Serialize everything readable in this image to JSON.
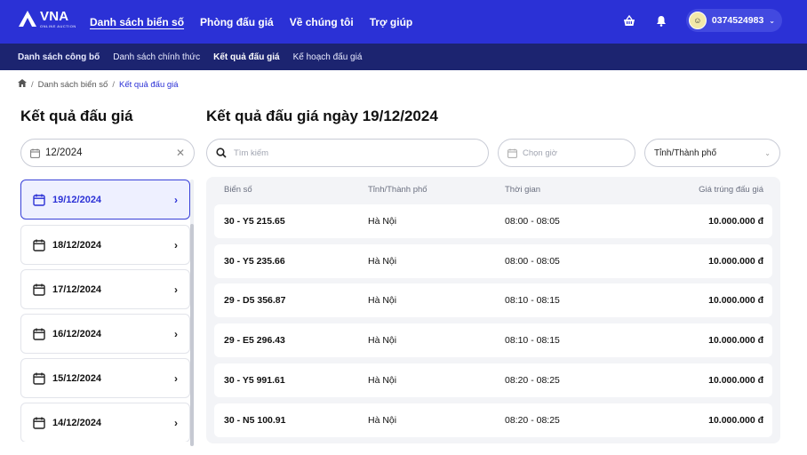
{
  "brand": {
    "name": "VNA",
    "tagline": "ONLINE AUCTION"
  },
  "nav": {
    "items": [
      {
        "label": "Danh sách biển số",
        "active": true
      },
      {
        "label": "Phòng đấu giá",
        "active": false
      },
      {
        "label": "Về chúng tôi",
        "active": false
      },
      {
        "label": "Trợ giúp",
        "active": false
      }
    ]
  },
  "user": {
    "phone": "0374524983"
  },
  "subnav": {
    "items": [
      {
        "label": "Danh sách công bố"
      },
      {
        "label": "Danh sách chính thức"
      },
      {
        "label": "Kết quả đấu giá",
        "active": true
      },
      {
        "label": "Kế hoạch đấu giá"
      }
    ]
  },
  "breadcrumb": {
    "items": [
      "Danh sách biển số",
      "Kết quả đấu giá"
    ]
  },
  "left": {
    "title": "Kết quả đấu giá",
    "month_value": "12/2024",
    "dates": [
      "19/12/2024",
      "18/12/2024",
      "17/12/2024",
      "16/12/2024",
      "15/12/2024",
      "14/12/2024"
    ],
    "selected_index": 0
  },
  "right": {
    "title": "Kết quả đấu giá ngày 19/12/2024",
    "search_placeholder": "Tìm kiếm",
    "time_placeholder": "Chọn giờ",
    "city_value": "Tỉnh/Thành phố"
  },
  "table": {
    "headers": [
      "Biển số",
      "Tỉnh/Thành phố",
      "Thời gian",
      "Giá trúng đấu giá"
    ],
    "rows": [
      [
        "30 - Y5 215.65",
        "Hà Nội",
        "08:00 - 08:05",
        "10.000.000 đ"
      ],
      [
        "30 - Y5 235.66",
        "Hà Nội",
        "08:00 - 08:05",
        "10.000.000 đ"
      ],
      [
        "29 - D5 356.87",
        "Hà Nội",
        "08:10 - 08:15",
        "10.000.000 đ"
      ],
      [
        "29 - E5 296.43",
        "Hà Nội",
        "08:10 - 08:15",
        "10.000.000 đ"
      ],
      [
        "30 - Y5 991.61",
        "Hà Nội",
        "08:20 - 08:25",
        "10.000.000 đ"
      ],
      [
        "30 - N5 100.91",
        "Hà Nội",
        "08:20 - 08:25",
        "10.000.000 đ"
      ]
    ]
  },
  "colors": {
    "primary": "#2b31d6",
    "subnav": "#1c2470",
    "panel": "#f3f4f7"
  }
}
